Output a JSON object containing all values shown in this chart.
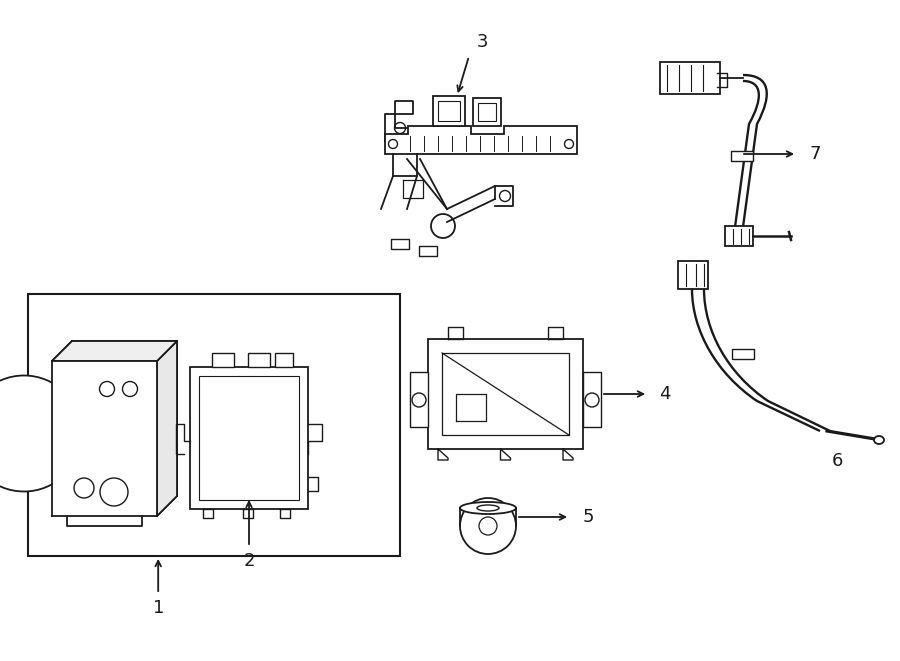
{
  "bg_color": "#ffffff",
  "line_color": "#1a1a1a",
  "lw": 1.3,
  "fig_width": 9.0,
  "fig_height": 6.61
}
